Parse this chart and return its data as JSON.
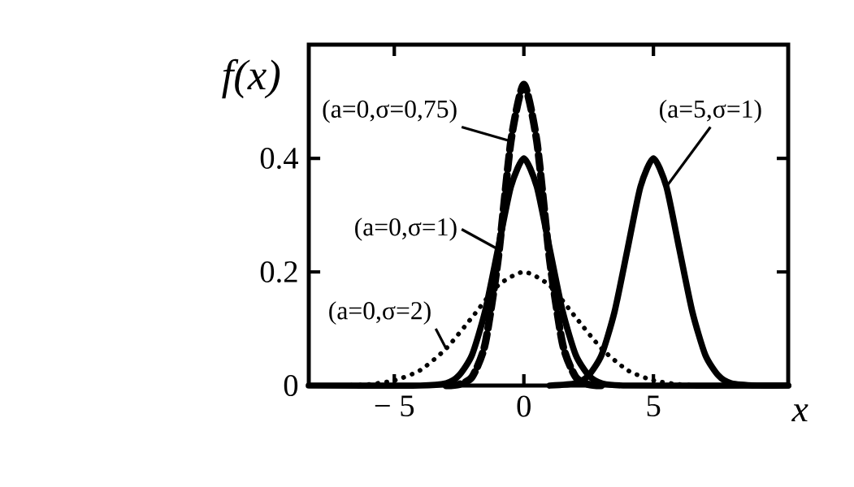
{
  "chart_data": {
    "type": "line",
    "xlabel": "x",
    "ylabel": "f(x)",
    "xlim": [
      -8.3,
      10.2
    ],
    "ylim": [
      0,
      0.6
    ],
    "xticks": [
      {
        "value": -5,
        "label": "− 5"
      },
      0,
      5
    ],
    "yticks": [
      0,
      0.2,
      0.4
    ],
    "grid": false,
    "marker": "none",
    "series": [
      {
        "color": "#000000",
        "line_style": "dashed",
        "x": [
          -3,
          -2.5,
          -2,
          -1.5,
          -1,
          -0.5,
          0,
          0.5,
          1,
          1.5,
          2,
          2.5,
          3
        ],
        "values": [
          0,
          0.002,
          0.015,
          0.072,
          0.22,
          0.43,
          0.53,
          0.43,
          0.22,
          0.072,
          0.015,
          0.002,
          0
        ]
      },
      {
        "color": "#000000",
        "line_style": "solid",
        "x": [
          -8.3,
          -4,
          -3,
          -2.5,
          -2,
          -1.5,
          -1,
          -0.5,
          0,
          0.5,
          1,
          1.5,
          2,
          2.5,
          3,
          4,
          10.2
        ],
        "values": [
          0,
          0,
          0.004,
          0.018,
          0.054,
          0.13,
          0.24,
          0.35,
          0.4,
          0.35,
          0.24,
          0.13,
          0.054,
          0.018,
          0.004,
          0,
          0
        ]
      },
      {
        "color": "#000000",
        "line_style": "dotted",
        "x": [
          -7,
          -6,
          -5,
          -4,
          -3,
          -2,
          -1,
          0,
          1,
          2,
          3,
          4,
          5,
          6,
          7
        ],
        "values": [
          0,
          0.002,
          0.009,
          0.027,
          0.065,
          0.12,
          0.176,
          0.2,
          0.176,
          0.12,
          0.065,
          0.027,
          0.009,
          0.002,
          0
        ]
      },
      {
        "color": "#000000",
        "line_style": "solid",
        "x": [
          1,
          2,
          2.5,
          3,
          3.5,
          4,
          4.5,
          5,
          5.5,
          6,
          6.5,
          7,
          7.5,
          8,
          9,
          10.2
        ],
        "values": [
          0,
          0.004,
          0.018,
          0.054,
          0.13,
          0.24,
          0.35,
          0.4,
          0.35,
          0.24,
          0.13,
          0.054,
          0.018,
          0.004,
          0,
          0
        ]
      }
    ],
    "annotations": [
      {
        "text": "(a=0,σ=0,75)",
        "x": -0.5,
        "y": 0.43
      },
      {
        "text": "(a=5,σ=1)",
        "x": 5.5,
        "y": 0.35
      },
      {
        "text": "(a=0,σ=1)",
        "x": -1,
        "y": 0.24
      },
      {
        "text": "(a=0,σ=2)",
        "x": -3,
        "y": 0.065
      }
    ]
  }
}
